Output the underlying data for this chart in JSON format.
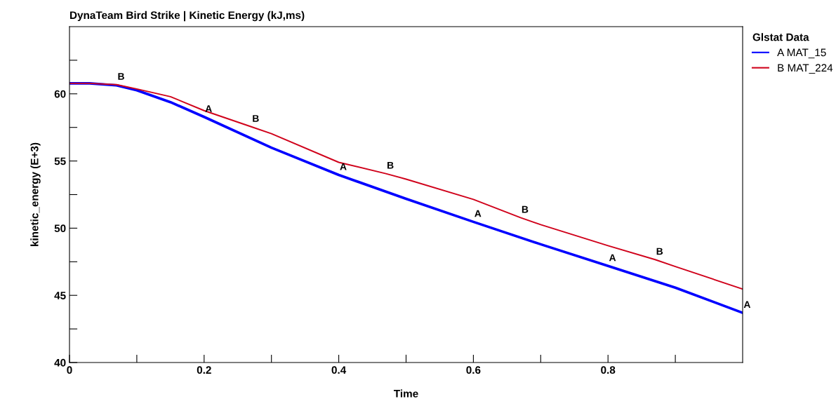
{
  "chart_data": {
    "type": "line",
    "title": "DynaTeam Bird Strike | Kinetic Energy (kJ,ms)",
    "xlabel": "Time",
    "ylabel": "kinetic_energy (E+3)",
    "legend_title": "Glstat Data",
    "legend": "top right",
    "grid": false,
    "marker": "none",
    "line_style": "solid",
    "xlim": [
      0,
      1.0
    ],
    "ylim": [
      40,
      65
    ],
    "xticks": [
      0,
      {
        "value": 0.1,
        "label": null
      },
      0.2,
      {
        "value": 0.3,
        "label": null
      },
      0.4,
      {
        "value": 0.5,
        "label": null
      },
      0.6,
      {
        "value": 0.7,
        "label": null
      },
      0.8,
      {
        "value": 0.9,
        "label": null
      }
    ],
    "yticks": [
      40,
      {
        "value": 42.5,
        "label": null
      },
      45,
      {
        "value": 47.5,
        "label": null
      },
      50,
      {
        "value": 52.5,
        "label": null
      },
      55,
      {
        "value": 57.5,
        "label": null
      },
      60,
      {
        "value": 62.5,
        "label": null
      }
    ],
    "series": [
      {
        "name": "A MAT_15",
        "color": "#0000ff",
        "x": [
          0,
          0.03,
          0.07,
          0.1,
          0.15,
          0.2,
          0.3,
          0.4,
          0.5,
          0.6,
          0.7,
          0.8,
          0.9,
          1.0
        ],
        "values": [
          60.78,
          60.78,
          60.63,
          60.26,
          59.38,
          58.28,
          55.99,
          53.96,
          52.19,
          50.47,
          48.8,
          47.19,
          45.57,
          43.7
        ]
      },
      {
        "name": "B MAT_224",
        "color": "#d0021b",
        "x": [
          0,
          0.03,
          0.07,
          0.1,
          0.15,
          0.2,
          0.27,
          0.3,
          0.4,
          0.47,
          0.5,
          0.6,
          0.67,
          0.7,
          0.8,
          0.87,
          0.9,
          1.0
        ],
        "values": [
          60.78,
          60.78,
          60.68,
          60.36,
          59.79,
          58.75,
          57.55,
          57.03,
          54.9,
          54.06,
          53.65,
          52.14,
          50.78,
          50.26,
          48.7,
          47.66,
          47.14,
          45.47
        ]
      }
    ],
    "annotations": [
      {
        "text": "A",
        "x": 0.2,
        "y": 58.28
      },
      {
        "text": "A",
        "x": 0.4,
        "y": 53.96
      },
      {
        "text": "A",
        "x": 0.6,
        "y": 50.47
      },
      {
        "text": "A",
        "x": 0.8,
        "y": 47.19
      },
      {
        "text": "A",
        "x": 1.0,
        "y": 43.7
      },
      {
        "text": "B",
        "x": 0.07,
        "y": 60.68
      },
      {
        "text": "B",
        "x": 0.27,
        "y": 57.55
      },
      {
        "text": "B",
        "x": 0.47,
        "y": 54.06
      },
      {
        "text": "B",
        "x": 0.67,
        "y": 50.78
      },
      {
        "text": "B",
        "x": 0.87,
        "y": 47.66
      }
    ]
  }
}
